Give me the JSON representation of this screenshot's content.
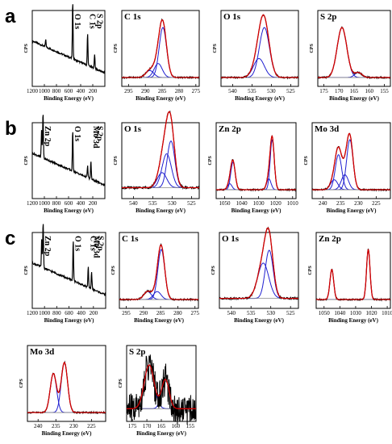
{
  "figure": {
    "row_labels": [
      "a",
      "b",
      "c"
    ],
    "ylabel": "CPS",
    "xlabel": "Binding Energy (eV)",
    "colors": {
      "envelope": "#d40000",
      "data": "#000000",
      "component": "#1f1fd0",
      "background": "#888888"
    }
  },
  "chart_data": [
    {
      "type": "line",
      "row": "a",
      "kind": "survey",
      "title": "",
      "xlabel": "Binding Energy (eV)",
      "ylabel": "CPS",
      "xlim": [
        1200,
        0
      ],
      "xticks": [
        1200,
        1000,
        800,
        600,
        400,
        200
      ],
      "xticks_labels": [
        "1200",
        "1000",
        "800",
        "600",
        "400",
        "200"
      ],
      "annotations": [
        {
          "text": "O 1s",
          "x": 531
        },
        {
          "text": "C 1s",
          "x": 285
        },
        {
          "text": "S 2p",
          "x": 169
        }
      ],
      "peaks": [
        {
          "be": 531,
          "height": 1.0
        },
        {
          "be": 285,
          "height": 0.55
        },
        {
          "be": 169,
          "height": 0.25
        },
        {
          "be": 978,
          "height": 0.12
        }
      ]
    },
    {
      "type": "line",
      "row": "a",
      "kind": "hr",
      "title": "C 1s",
      "xlabel": "Binding Energy (eV)",
      "ylabel": "CPS",
      "xlim": [
        297,
        274
      ],
      "xticks": [
        295,
        290,
        285,
        280,
        275
      ],
      "xticks_labels": [
        "295",
        "290",
        "285",
        "280",
        "275"
      ],
      "components": [
        {
          "center": 284.8,
          "height": 1.0,
          "width": 1.1
        },
        {
          "center": 286.2,
          "height": 0.28,
          "width": 1.2
        },
        {
          "center": 288.7,
          "height": 0.14,
          "width": 1.2
        }
      ]
    },
    {
      "type": "line",
      "row": "a",
      "kind": "hr",
      "title": "O 1s",
      "xlabel": "Binding Energy (eV)",
      "ylabel": "CPS",
      "xlim": [
        543,
        523
      ],
      "xticks": [
        540,
        535,
        530,
        525
      ],
      "xticks_labels": [
        "540",
        "535",
        "530",
        "525"
      ],
      "components": [
        {
          "center": 531.8,
          "height": 1.0,
          "width": 1.3
        },
        {
          "center": 533.2,
          "height": 0.38,
          "width": 1.4
        }
      ]
    },
    {
      "type": "line",
      "row": "a",
      "kind": "hr",
      "title": "S 2p",
      "xlabel": "Binding Energy (eV)",
      "ylabel": "CPS",
      "xlim": [
        177,
        153
      ],
      "xticks": [
        175,
        170,
        165,
        160,
        155
      ],
      "xticks_labels": [
        "175",
        "170",
        "165",
        "160",
        "155"
      ],
      "components": [
        {
          "center": 169.0,
          "height": 1.0,
          "width": 1.6
        },
        {
          "center": 163.6,
          "height": 0.1,
          "width": 1.2
        }
      ]
    },
    {
      "type": "line",
      "row": "b",
      "kind": "survey",
      "title": "",
      "xlabel": "Binding Energy (eV)",
      "ylabel": "CPS",
      "xlim": [
        1200,
        0
      ],
      "xticks": [
        1200,
        1000,
        800,
        600,
        400,
        200
      ],
      "xticks_labels": [
        "1200",
        "1000",
        "800",
        "600",
        "400",
        "200"
      ],
      "annotations": [
        {
          "text": "Zn 2p",
          "x": 1030
        },
        {
          "text": "O 1s",
          "x": 531
        },
        {
          "text": "Mo 3d",
          "x": 230
        },
        {
          "text": "S 2p",
          "x": 165
        }
      ],
      "peaks": [
        {
          "be": 1022,
          "height": 0.8
        },
        {
          "be": 1045,
          "height": 0.5
        },
        {
          "be": 531,
          "height": 0.7
        },
        {
          "be": 230,
          "height": 0.3
        },
        {
          "be": 285,
          "height": 0.2
        }
      ]
    },
    {
      "type": "line",
      "row": "b",
      "kind": "hr",
      "title": "O 1s",
      "xlabel": "Binding Energy (eV)",
      "ylabel": "CPS",
      "xlim": [
        543,
        523
      ],
      "xticks": [
        540,
        535,
        530,
        525
      ],
      "xticks_labels": [
        "540",
        "535",
        "530",
        "525"
      ],
      "components": [
        {
          "center": 530.3,
          "height": 0.62,
          "width": 1.0
        },
        {
          "center": 531.4,
          "height": 0.45,
          "width": 1.2
        },
        {
          "center": 532.6,
          "height": 0.2,
          "width": 1.2
        }
      ]
    },
    {
      "type": "line",
      "row": "b",
      "kind": "hr",
      "title": "Zn 2p",
      "xlabel": "Binding Energy (eV)",
      "ylabel": "CPS",
      "xlim": [
        1055,
        1008
      ],
      "xticks": [
        1050,
        1040,
        1030,
        1020,
        1010
      ],
      "xticks_labels": [
        "1050",
        "1040",
        "1030",
        "1020",
        "1010"
      ],
      "components": [
        {
          "center": 1022.0,
          "height": 1.0,
          "width": 1.2
        },
        {
          "center": 1045.1,
          "height": 0.55,
          "width": 1.3
        },
        {
          "center": 1024.0,
          "height": 0.22,
          "width": 1.3
        },
        {
          "center": 1047.0,
          "height": 0.12,
          "width": 1.3
        }
      ]
    },
    {
      "type": "line",
      "row": "b",
      "kind": "hr",
      "title": "Mo 3d",
      "xlabel": "Binding Energy (eV)",
      "ylabel": "CPS",
      "xlim": [
        243,
        221
      ],
      "xticks": [
        240,
        235,
        230,
        225
      ],
      "xticks_labels": [
        "240",
        "235",
        "230",
        "225"
      ],
      "components": [
        {
          "center": 232.4,
          "height": 1.0,
          "width": 0.9
        },
        {
          "center": 235.6,
          "height": 0.7,
          "width": 0.9
        },
        {
          "center": 233.8,
          "height": 0.3,
          "width": 1.0
        },
        {
          "center": 236.8,
          "height": 0.2,
          "width": 1.0
        }
      ]
    },
    {
      "type": "line",
      "row": "c",
      "kind": "survey",
      "title": "",
      "xlabel": "Binding Energy (eV)",
      "ylabel": "CPS",
      "xlim": [
        1200,
        0
      ],
      "xticks": [
        1200,
        1000,
        800,
        600,
        400,
        200
      ],
      "xticks_labels": [
        "1200",
        "1000",
        "800",
        "600",
        "400",
        "200"
      ],
      "annotations": [
        {
          "text": "Zn 2p",
          "x": 1030
        },
        {
          "text": "O 1s",
          "x": 531
        },
        {
          "text": "C 1s",
          "x": 285
        },
        {
          "text": "Mo 3d",
          "x": 230
        },
        {
          "text": "S 2p",
          "x": 165
        }
      ],
      "peaks": [
        {
          "be": 1022,
          "height": 0.8
        },
        {
          "be": 1045,
          "height": 0.5
        },
        {
          "be": 531,
          "height": 0.7
        },
        {
          "be": 285,
          "height": 0.35
        },
        {
          "be": 230,
          "height": 0.3
        }
      ]
    },
    {
      "type": "line",
      "row": "c",
      "kind": "hr",
      "title": "C 1s",
      "xlabel": "Binding Energy (eV)",
      "ylabel": "CPS",
      "xlim": [
        297,
        274
      ],
      "xticks": [
        295,
        290,
        285,
        280,
        275
      ],
      "xticks_labels": [
        "295",
        "290",
        "285",
        "280",
        "275"
      ],
      "components": [
        {
          "center": 284.8,
          "height": 1.0,
          "width": 1.0
        },
        {
          "center": 286.0,
          "height": 0.16,
          "width": 1.1
        },
        {
          "center": 288.8,
          "height": 0.16,
          "width": 1.1
        }
      ]
    },
    {
      "type": "line",
      "row": "c",
      "kind": "hr",
      "title": "O 1s",
      "xlabel": "Binding Energy (eV)",
      "ylabel": "CPS",
      "xlim": [
        543,
        523
      ],
      "xticks": [
        540,
        535,
        530,
        525
      ],
      "xticks_labels": [
        "540",
        "535",
        "530",
        "525"
      ],
      "components": [
        {
          "center": 530.4,
          "height": 0.75,
          "width": 1.0
        },
        {
          "center": 531.9,
          "height": 0.55,
          "width": 1.4
        }
      ]
    },
    {
      "type": "line",
      "row": "c",
      "kind": "hr",
      "title": "Zn 2p",
      "xlabel": "Binding Energy (eV)",
      "ylabel": "CPS",
      "xlim": [
        1055,
        1008
      ],
      "xticks": [
        1050,
        1040,
        1030,
        1020,
        1010
      ],
      "xticks_labels": [
        "1050",
        "1040",
        "1030",
        "1020",
        "1010"
      ],
      "components": [
        {
          "center": 1022.0,
          "height": 1.0,
          "width": 1.1
        },
        {
          "center": 1045.1,
          "height": 0.6,
          "width": 1.2
        }
      ]
    },
    {
      "type": "line",
      "row": "c",
      "kind": "hr",
      "title": "Mo 3d",
      "xlabel": "Binding Energy (eV)",
      "ylabel": "CPS",
      "xlim": [
        243,
        221
      ],
      "xticks": [
        240,
        235,
        230,
        225
      ],
      "xticks_labels": [
        "240",
        "235",
        "230",
        "225"
      ],
      "components": [
        {
          "center": 232.6,
          "height": 1.0,
          "width": 0.9
        },
        {
          "center": 235.7,
          "height": 0.78,
          "width": 0.9
        }
      ]
    },
    {
      "type": "line",
      "row": "c",
      "kind": "hr",
      "title": "S 2p",
      "xlabel": "Binding Energy (eV)",
      "ylabel": "CPS",
      "xlim": [
        177,
        153
      ],
      "xticks": [
        175,
        170,
        165,
        160,
        155
      ],
      "xticks_labels": [
        "175",
        "170",
        "165",
        "160",
        "155"
      ],
      "components": [
        {
          "center": 169.2,
          "height": 0.45,
          "width": 1.7
        },
        {
          "center": 163.6,
          "height": 0.3,
          "width": 1.3
        }
      ]
    }
  ]
}
